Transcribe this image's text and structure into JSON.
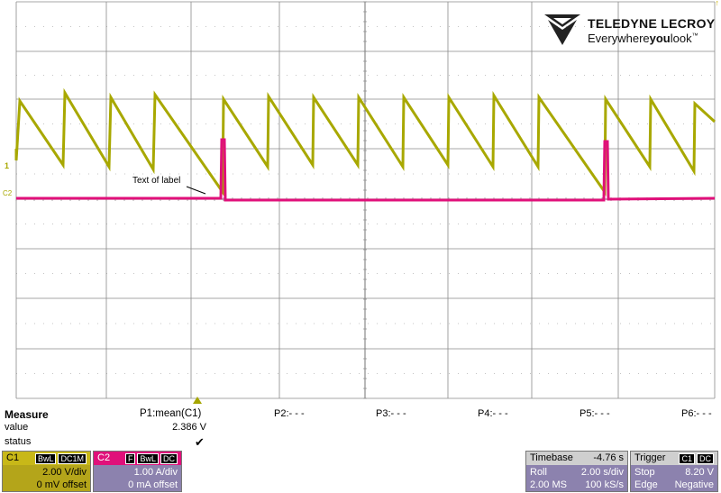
{
  "brand": {
    "name": "TELEDYNE LECROY",
    "tagline_pre": "Everywhere",
    "tagline_bold": "you",
    "tagline_post": "look",
    "tm": "™"
  },
  "waveform": {
    "label_text": "Text of label",
    "c1_marker": "1",
    "c2_marker": "C2",
    "colors": {
      "c1": "#a8a800",
      "c2": "#e0107a",
      "grid": "#8a8a8a",
      "grid_center": "#777777"
    }
  },
  "measure": {
    "heading": "Measure",
    "row_value": "value",
    "row_status": "status",
    "params": [
      {
        "name": "P1:mean(C1)",
        "value": "2.386 V",
        "status": "✔"
      },
      {
        "name": "P2:- - -"
      },
      {
        "name": "P3:- - -"
      },
      {
        "name": "P4:- - -"
      },
      {
        "name": "P5:- - -"
      },
      {
        "name": "P6:- - -"
      }
    ]
  },
  "c1": {
    "label": "C1",
    "badge1": "BwL",
    "badge2": "DC1M",
    "vdiv": "2.00 V/div",
    "offset": "0 mV offset",
    "color": "#a8a800"
  },
  "c2": {
    "label": "C2",
    "badge0": "F",
    "badge1": "BwL",
    "badge2": "DC",
    "adiv": "1.00 A/div",
    "offset": "0 mA offset",
    "color": "#e0107a"
  },
  "timebase": {
    "label": "Timebase",
    "delay": "-4.76 s",
    "mode": "Roll",
    "tdiv": "2.00 s/div",
    "samples": "2.00 MS",
    "rate": "100 kS/s"
  },
  "trigger": {
    "label": "Trigger",
    "src": "C1",
    "coupling": "DC",
    "state": "Stop",
    "level": "8.20 V",
    "type": "Edge",
    "slope": "Negative"
  }
}
